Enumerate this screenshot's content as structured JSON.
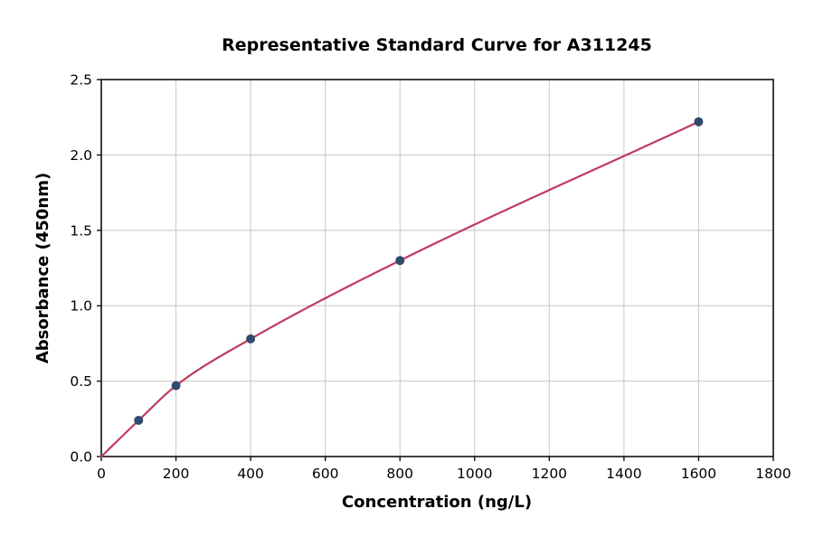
{
  "chart_data": {
    "type": "scatter",
    "title": "Representative Standard Curve for A311245",
    "xlabel": "Concentration (ng/L)",
    "ylabel": "Absorbance (450nm)",
    "xlim": [
      0,
      1800
    ],
    "ylim": [
      0,
      2.5
    ],
    "x_ticks": [
      0,
      200,
      400,
      600,
      800,
      1000,
      1200,
      1400,
      1600,
      1800
    ],
    "x_tick_labels": [
      "0",
      "200",
      "400",
      "600",
      "800",
      "1000",
      "1200",
      "1400",
      "1600",
      "1800"
    ],
    "y_ticks": [
      0.0,
      0.5,
      1.0,
      1.5,
      2.0,
      2.5
    ],
    "y_tick_labels": [
      "0.0",
      "0.5",
      "1.0",
      "1.5",
      "2.0",
      "2.5"
    ],
    "grid": true,
    "legend": "none",
    "points": {
      "x": [
        100,
        200,
        400,
        800,
        1600
      ],
      "y": [
        0.24,
        0.47,
        0.78,
        1.3,
        2.22
      ]
    },
    "fit_curve": {
      "description": "smooth fit through origin and all data points",
      "x_start": 0,
      "y_start": 0,
      "x_end": 1600
    },
    "colors": {
      "curve": "#C03A60",
      "marker": "#2F4B6C",
      "grid": "#CCCCCC",
      "spine": "#111111",
      "tick": "#111111",
      "text": "#000000",
      "background": "#FFFFFF"
    }
  }
}
